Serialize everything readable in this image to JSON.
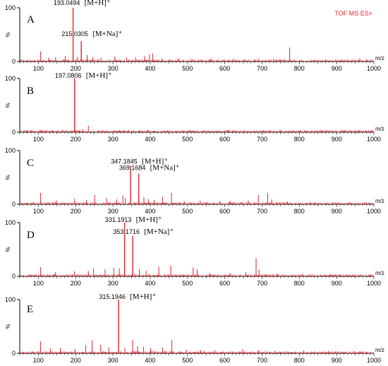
{
  "chart_data": [
    {
      "type": "bar",
      "panel": "A",
      "instrument": "TOF MS ES+",
      "xunit": "m/z",
      "ylabel": "%",
      "xlim": [
        50,
        1000
      ],
      "ylim": [
        0,
        100
      ],
      "yticks": [
        "100",
        "0"
      ],
      "xticks": [
        "100",
        "200",
        "300",
        "400",
        "500",
        "600",
        "700",
        "800",
        "900",
        "1000"
      ],
      "color": "#e8222a",
      "peaks": [
        {
          "mz": 193.0494,
          "intensity": 100,
          "label": "193.0494",
          "ion": "[M+H]⁺"
        },
        {
          "mz": 215.0305,
          "intensity": 38,
          "label": "215.0305",
          "ion": "[M+Na]⁺"
        },
        {
          "mz": 106,
          "intensity": 19
        },
        {
          "mz": 128,
          "intensity": 7
        },
        {
          "mz": 146,
          "intensity": 8
        },
        {
          "mz": 172,
          "intensity": 10
        },
        {
          "mz": 205,
          "intensity": 9
        },
        {
          "mz": 231,
          "intensity": 12
        },
        {
          "mz": 246,
          "intensity": 8
        },
        {
          "mz": 268,
          "intensity": 7
        },
        {
          "mz": 305,
          "intensity": 9
        },
        {
          "mz": 337,
          "intensity": 7
        },
        {
          "mz": 361,
          "intensity": 8
        },
        {
          "mz": 385,
          "intensity": 10
        },
        {
          "mz": 398,
          "intensity": 13
        },
        {
          "mz": 407,
          "intensity": 15
        },
        {
          "mz": 432,
          "intensity": 6
        },
        {
          "mz": 476,
          "intensity": 6
        },
        {
          "mz": 512,
          "intensity": 5
        },
        {
          "mz": 563,
          "intensity": 5
        },
        {
          "mz": 623,
          "intensity": 5
        },
        {
          "mz": 690,
          "intensity": 5
        },
        {
          "mz": 731,
          "intensity": 5
        },
        {
          "mz": 774,
          "intensity": 26
        },
        {
          "mz": 870,
          "intensity": 4
        },
        {
          "mz": 962,
          "intensity": 6
        }
      ]
    },
    {
      "type": "bar",
      "panel": "B",
      "xunit": "m/z",
      "ylabel": "%",
      "xlim": [
        50,
        1000
      ],
      "ylim": [
        0,
        100
      ],
      "yticks": [
        "100",
        "0"
      ],
      "xticks": [
        "100",
        "200",
        "300",
        "400",
        "500",
        "600",
        "700",
        "800",
        "900",
        "1000"
      ],
      "color": "#e8222a",
      "peaks": [
        {
          "mz": 197.0806,
          "intensity": 100,
          "label": "197.0806",
          "ion": "[M+H]⁺"
        },
        {
          "mz": 106,
          "intensity": 4
        },
        {
          "mz": 152,
          "intensity": 3
        },
        {
          "mz": 219,
          "intensity": 5
        },
        {
          "mz": 234,
          "intensity": 12
        },
        {
          "mz": 262,
          "intensity": 4
        },
        {
          "mz": 318,
          "intensity": 3
        },
        {
          "mz": 393,
          "intensity": 4
        },
        {
          "mz": 447,
          "intensity": 3
        },
        {
          "mz": 512,
          "intensity": 3
        },
        {
          "mz": 610,
          "intensity": 3
        },
        {
          "mz": 705,
          "intensity": 3
        },
        {
          "mz": 798,
          "intensity": 3
        },
        {
          "mz": 915,
          "intensity": 3
        }
      ]
    },
    {
      "type": "bar",
      "panel": "C",
      "xunit": "m/z",
      "ylabel": "%",
      "xlim": [
        50,
        1000
      ],
      "ylim": [
        0,
        100
      ],
      "yticks": [
        "100",
        "0"
      ],
      "xticks": [
        "100",
        "200",
        "300",
        "400",
        "500",
        "600",
        "700",
        "800",
        "900",
        "1000"
      ],
      "color": "#e8222a",
      "peaks": [
        {
          "mz": 347.1845,
          "intensity": 72,
          "label": "347.1845",
          "ion": "[M+H]⁺"
        },
        {
          "mz": 369.1684,
          "intensity": 57,
          "label": "369.1684",
          "ion": "[M+Na]⁺"
        },
        {
          "mz": 106,
          "intensity": 21
        },
        {
          "mz": 148,
          "intensity": 7
        },
        {
          "mz": 197,
          "intensity": 10
        },
        {
          "mz": 229,
          "intensity": 8
        },
        {
          "mz": 251,
          "intensity": 17
        },
        {
          "mz": 283,
          "intensity": 11
        },
        {
          "mz": 310,
          "intensity": 9
        },
        {
          "mz": 327,
          "intensity": 16
        },
        {
          "mz": 333,
          "intensity": 11
        },
        {
          "mz": 383,
          "intensity": 13
        },
        {
          "mz": 395,
          "intensity": 9
        },
        {
          "mz": 411,
          "intensity": 8
        },
        {
          "mz": 433,
          "intensity": 14
        },
        {
          "mz": 457,
          "intensity": 21
        },
        {
          "mz": 491,
          "intensity": 6
        },
        {
          "mz": 534,
          "intensity": 7
        },
        {
          "mz": 586,
          "intensity": 6
        },
        {
          "mz": 614,
          "intensity": 6
        },
        {
          "mz": 663,
          "intensity": 7
        },
        {
          "mz": 690,
          "intensity": 17
        },
        {
          "mz": 715,
          "intensity": 21
        },
        {
          "mz": 726,
          "intensity": 9
        },
        {
          "mz": 768,
          "intensity": 5
        },
        {
          "mz": 830,
          "intensity": 4
        },
        {
          "mz": 905,
          "intensity": 4
        },
        {
          "mz": 975,
          "intensity": 3
        }
      ]
    },
    {
      "type": "bar",
      "panel": "D",
      "xunit": "m/z",
      "ylabel": "%",
      "xlim": [
        50,
        1000
      ],
      "ylim": [
        0,
        100
      ],
      "yticks": [
        "100",
        "0"
      ],
      "xticks": [
        "100",
        "200",
        "300",
        "400",
        "500",
        "600",
        "700",
        "800",
        "900",
        "1000"
      ],
      "color": "#e8222a",
      "peaks": [
        {
          "mz": 331.1913,
          "intensity": 100,
          "label": "331.1913",
          "ion": "[M+H]⁺"
        },
        {
          "mz": 353.1716,
          "intensity": 75,
          "label": "353.1716",
          "ion": "[M+Na]⁺"
        },
        {
          "mz": 106,
          "intensity": 17
        },
        {
          "mz": 146,
          "intensity": 8
        },
        {
          "mz": 197,
          "intensity": 9
        },
        {
          "mz": 234,
          "intensity": 10
        },
        {
          "mz": 248,
          "intensity": 15
        },
        {
          "mz": 279,
          "intensity": 13
        },
        {
          "mz": 302,
          "intensity": 16
        },
        {
          "mz": 317,
          "intensity": 15
        },
        {
          "mz": 371,
          "intensity": 13
        },
        {
          "mz": 389,
          "intensity": 10
        },
        {
          "mz": 423,
          "intensity": 18
        },
        {
          "mz": 455,
          "intensity": 20
        },
        {
          "mz": 515,
          "intensity": 16
        },
        {
          "mz": 526,
          "intensity": 13
        },
        {
          "mz": 559,
          "intensity": 6
        },
        {
          "mz": 614,
          "intensity": 6
        },
        {
          "mz": 656,
          "intensity": 8
        },
        {
          "mz": 684,
          "intensity": 34
        },
        {
          "mz": 692,
          "intensity": 12
        },
        {
          "mz": 742,
          "intensity": 5
        },
        {
          "mz": 810,
          "intensity": 4
        },
        {
          "mz": 883,
          "intensity": 4
        },
        {
          "mz": 960,
          "intensity": 3
        }
      ]
    },
    {
      "type": "bar",
      "panel": "E",
      "xunit": "m/z",
      "ylabel": "%",
      "xlim": [
        50,
        1000
      ],
      "ylim": [
        0,
        100
      ],
      "yticks": [
        "100",
        "0"
      ],
      "xticks": [
        "100",
        "200",
        "300",
        "400",
        "500",
        "600",
        "700",
        "800",
        "900",
        "1000"
      ],
      "color": "#e8222a",
      "peaks": [
        {
          "mz": 315.1946,
          "intensity": 100,
          "label": "315.1946",
          "ion": "[M+H]⁺"
        },
        {
          "mz": 106,
          "intensity": 22
        },
        {
          "mz": 132,
          "intensity": 9
        },
        {
          "mz": 159,
          "intensity": 10
        },
        {
          "mz": 198,
          "intensity": 8
        },
        {
          "mz": 227,
          "intensity": 15
        },
        {
          "mz": 244,
          "intensity": 24
        },
        {
          "mz": 267,
          "intensity": 16
        },
        {
          "mz": 289,
          "intensity": 11
        },
        {
          "mz": 332,
          "intensity": 10
        },
        {
          "mz": 353,
          "intensity": 25
        },
        {
          "mz": 366,
          "intensity": 13
        },
        {
          "mz": 382,
          "intensity": 12
        },
        {
          "mz": 401,
          "intensity": 10
        },
        {
          "mz": 433,
          "intensity": 11
        },
        {
          "mz": 458,
          "intensity": 25
        },
        {
          "mz": 497,
          "intensity": 7
        },
        {
          "mz": 535,
          "intensity": 6
        },
        {
          "mz": 573,
          "intensity": 6
        },
        {
          "mz": 648,
          "intensity": 8
        },
        {
          "mz": 690,
          "intensity": 6
        },
        {
          "mz": 735,
          "intensity": 5
        },
        {
          "mz": 812,
          "intensity": 5
        },
        {
          "mz": 878,
          "intensity": 4
        },
        {
          "mz": 948,
          "intensity": 4
        }
      ]
    }
  ]
}
